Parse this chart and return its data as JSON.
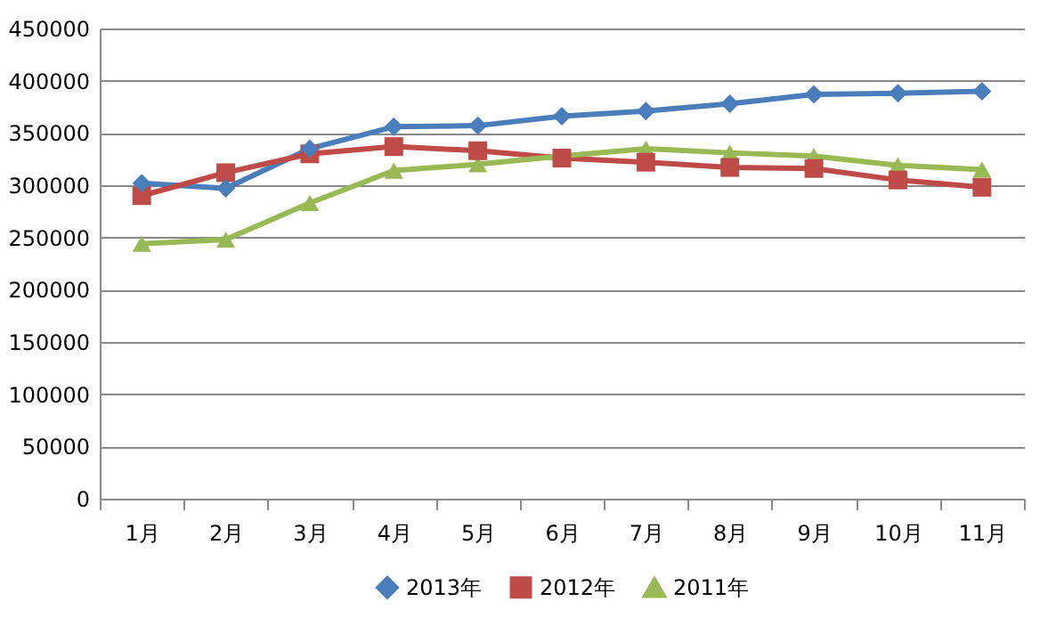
{
  "chart_data": {
    "type": "line",
    "categories": [
      "1月",
      "2月",
      "3月",
      "4月",
      "5月",
      "6月",
      "7月",
      "8月",
      "9月",
      "10月",
      "11月"
    ],
    "series": [
      {
        "name": "2013年",
        "color": "#4a7ebb",
        "marker": "diamond",
        "values": [
          302000,
          297000,
          335000,
          356000,
          357000,
          366000,
          371000,
          378000,
          387000,
          388000,
          390000
        ]
      },
      {
        "name": "2012年",
        "color": "#be4b48",
        "marker": "square",
        "values": [
          290000,
          312000,
          330000,
          337000,
          333000,
          326000,
          322000,
          317000,
          316000,
          305000,
          298000
        ]
      },
      {
        "name": "2011年",
        "color": "#98b954",
        "marker": "triangle",
        "values": [
          244000,
          248000,
          283000,
          314000,
          320000,
          328000,
          335000,
          331000,
          328000,
          319000,
          315000
        ]
      }
    ],
    "ylim": [
      0,
      450000
    ],
    "yticks": [
      0,
      50000,
      100000,
      150000,
      200000,
      250000,
      300000,
      350000,
      400000,
      450000
    ],
    "grid": "y",
    "legend": "bottom",
    "line_style": "solid"
  }
}
